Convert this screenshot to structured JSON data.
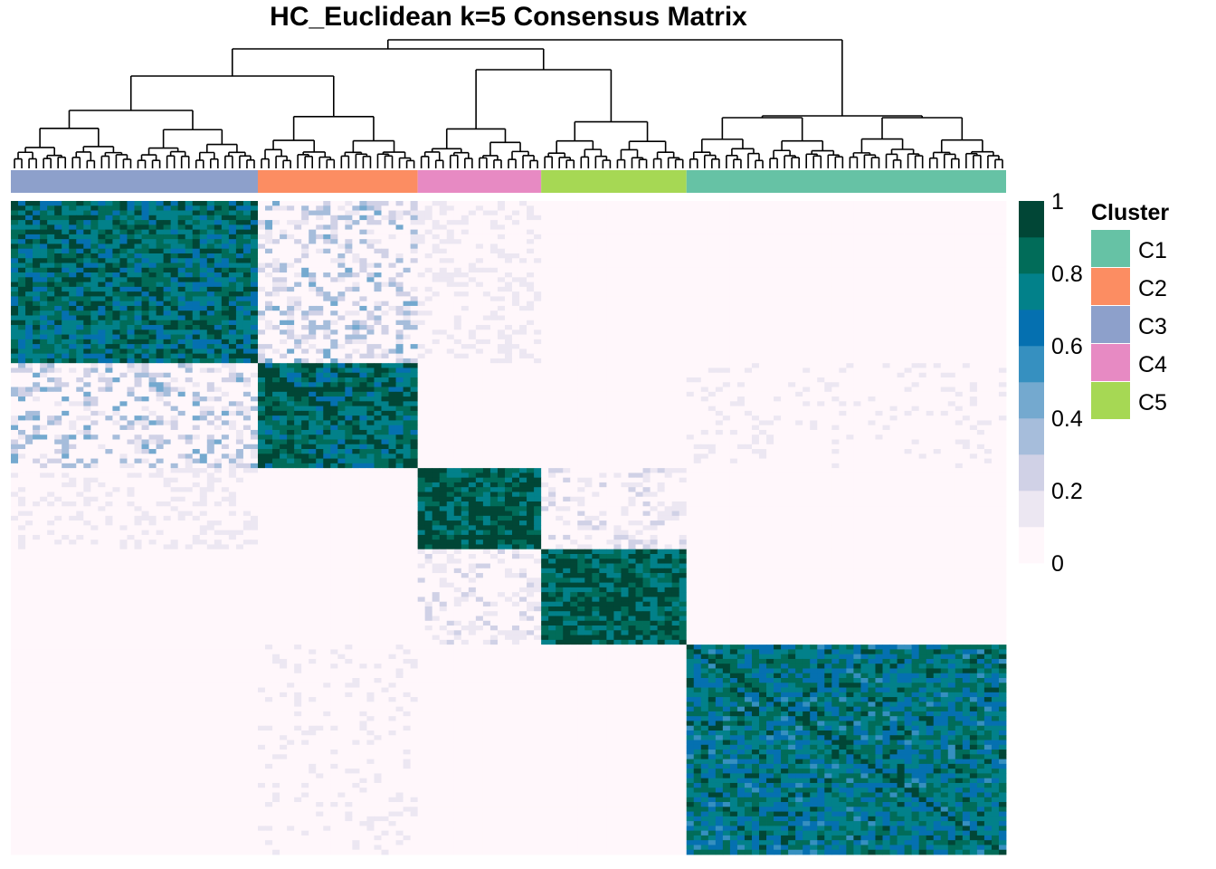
{
  "chart_data": {
    "type": "heatmap",
    "title": "HC_Euclidean k=5 Consensus Matrix",
    "colorbar": {
      "min": 0,
      "max": 1,
      "ticks": [
        "1",
        "0.8",
        "0.6",
        "0.4",
        "0.2",
        "0"
      ],
      "bins": [
        "#fff7fb",
        "#ece7f2",
        "#d0d1e6",
        "#a6bddb",
        "#74a9cf",
        "#3690c0",
        "#0570b0",
        "#02818a",
        "#016c59",
        "#014636"
      ]
    },
    "legend": {
      "title": "Cluster",
      "placement": "right",
      "entries": [
        {
          "label": "C1",
          "color": "#66C2A5"
        },
        {
          "label": "C2",
          "color": "#FC8D62"
        },
        {
          "label": "C3",
          "color": "#8DA0CB"
        },
        {
          "label": "C4",
          "color": "#E78AC3"
        },
        {
          "label": "C5",
          "color": "#A6D854"
        }
      ]
    },
    "column_order_clusters": [
      "C3",
      "C2",
      "C4",
      "C5",
      "C1"
    ],
    "cluster_sizes": [
      34,
      22,
      17,
      20,
      44
    ],
    "within_cluster_consensus": [
      0.78,
      0.82,
      0.88,
      0.86,
      0.74
    ],
    "between_cluster_consensus": [
      [
        0.78,
        0.22,
        0.1,
        0.04,
        0.05
      ],
      [
        0.22,
        0.82,
        0.01,
        0.01,
        0.07
      ],
      [
        0.1,
        0.01,
        0.88,
        0.12,
        0.02
      ],
      [
        0.04,
        0.01,
        0.12,
        0.86,
        0.03
      ],
      [
        0.05,
        0.07,
        0.02,
        0.03,
        0.74
      ]
    ],
    "grid": false
  }
}
